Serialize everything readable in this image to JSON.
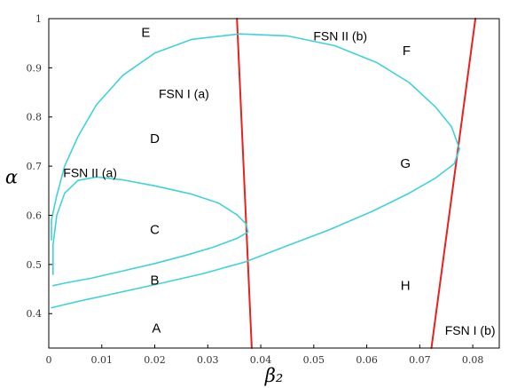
{
  "chart_data": {
    "type": "line",
    "xlabel": "β₂",
    "ylabel": "α",
    "xlim": [
      0,
      0.085
    ],
    "ylim": [
      0.33,
      1.0
    ],
    "x_ticks": [
      "0",
      "0.01",
      "0.02",
      "0.03",
      "0.04",
      "0.05",
      "0.06",
      "0.07",
      "0.08"
    ],
    "y_ticks": [
      "0.4",
      "0.5",
      "0.6",
      "0.7",
      "0.8",
      "0.9",
      "1"
    ],
    "x_tick_values": [
      0,
      0.01,
      0.02,
      0.03,
      0.04,
      0.05,
      0.06,
      0.07,
      0.08
    ],
    "y_tick_values": [
      0.4,
      0.5,
      0.6,
      0.7,
      0.8,
      0.9,
      1.0
    ],
    "grid": false,
    "colors": {
      "fsn_ii": "#3fd3d8",
      "fsn_i": "#e8201e",
      "axis": "#000000"
    },
    "curve_labels": [
      {
        "text": "FSN I (a)",
        "x": 0.0255,
        "y": 0.847
      },
      {
        "text": "FSN I (b)",
        "x": 0.0795,
        "y": 0.366
      },
      {
        "text": "FSN II (b)",
        "x": 0.055,
        "y": 0.965
      },
      {
        "text": "FSN II (a)",
        "x": 0.0078,
        "y": 0.687
      }
    ],
    "regions": [
      {
        "label": "E",
        "x": 0.0183,
        "y": 0.972
      },
      {
        "label": "F",
        "x": 0.0675,
        "y": 0.935
      },
      {
        "label": "D",
        "x": 0.02,
        "y": 0.756
      },
      {
        "label": "G",
        "x": 0.0673,
        "y": 0.706
      },
      {
        "label": "C",
        "x": 0.02,
        "y": 0.571
      },
      {
        "label": "B",
        "x": 0.02,
        "y": 0.468
      },
      {
        "label": "H",
        "x": 0.0673,
        "y": 0.457
      },
      {
        "label": "A",
        "x": 0.0203,
        "y": 0.371
      }
    ],
    "series": [
      {
        "name": "FSN I (a)",
        "color": "#e8201e",
        "points": [
          [
            0.0355,
            1.0
          ],
          [
            0.0383,
            0.33
          ]
        ]
      },
      {
        "name": "FSN I (b)",
        "color": "#e8201e",
        "points": [
          [
            0.0722,
            0.33
          ],
          [
            0.0805,
            1.0
          ]
        ]
      },
      {
        "name": "FSN II (b)",
        "color": "#3fd3d8",
        "points": [
          [
            0.0005,
            0.55
          ],
          [
            0.0005,
            0.59
          ],
          [
            0.0015,
            0.64
          ],
          [
            0.003,
            0.7
          ],
          [
            0.0055,
            0.76
          ],
          [
            0.009,
            0.825
          ],
          [
            0.014,
            0.885
          ],
          [
            0.02,
            0.93
          ],
          [
            0.027,
            0.958
          ],
          [
            0.036,
            0.969
          ],
          [
            0.045,
            0.965
          ],
          [
            0.054,
            0.945
          ],
          [
            0.062,
            0.91
          ],
          [
            0.068,
            0.87
          ],
          [
            0.073,
            0.82
          ],
          [
            0.076,
            0.78
          ],
          [
            0.0775,
            0.735
          ],
          [
            0.0765,
            0.705
          ],
          [
            0.073,
            0.676
          ],
          [
            0.068,
            0.645
          ],
          [
            0.061,
            0.608
          ],
          [
            0.053,
            0.571
          ],
          [
            0.045,
            0.538
          ],
          [
            0.037,
            0.505
          ],
          [
            0.029,
            0.481
          ],
          [
            0.02,
            0.459
          ],
          [
            0.012,
            0.44
          ],
          [
            0.006,
            0.426
          ],
          [
            0.0005,
            0.412
          ]
        ]
      },
      {
        "name": "FSN II (a)",
        "color": "#3fd3d8",
        "points": [
          [
            0.0008,
            0.48
          ],
          [
            0.0008,
            0.54
          ],
          [
            0.0015,
            0.6
          ],
          [
            0.003,
            0.645
          ],
          [
            0.0055,
            0.671
          ],
          [
            0.009,
            0.678
          ],
          [
            0.014,
            0.672
          ],
          [
            0.02,
            0.66
          ],
          [
            0.027,
            0.643
          ],
          [
            0.032,
            0.625
          ],
          [
            0.0355,
            0.601
          ],
          [
            0.0372,
            0.583
          ],
          [
            0.0376,
            0.566
          ],
          [
            0.0355,
            0.553
          ],
          [
            0.031,
            0.535
          ],
          [
            0.026,
            0.519
          ],
          [
            0.02,
            0.502
          ],
          [
            0.014,
            0.487
          ],
          [
            0.008,
            0.472
          ],
          [
            0.003,
            0.462
          ],
          [
            0.0008,
            0.457
          ]
        ]
      }
    ]
  }
}
